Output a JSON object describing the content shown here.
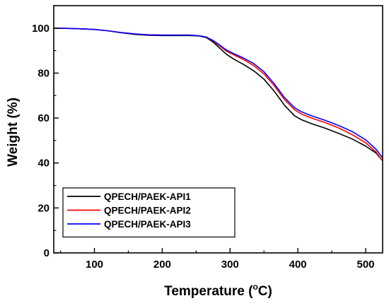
{
  "chart_data": {
    "type": "line",
    "xlabel": "Temperature (°C)",
    "xlabel_parts": {
      "prefix": "Temperature (",
      "super": "o",
      "suffix": "C)"
    },
    "ylabel": "Weight (%)",
    "xlim": [
      40,
      525
    ],
    "ylim": [
      0,
      110
    ],
    "x_ticks": [
      100,
      200,
      300,
      400,
      500
    ],
    "y_ticks": [
      0,
      20,
      40,
      60,
      80,
      100
    ],
    "x_minor_step": 50,
    "y_minor_step": 10,
    "grid": false,
    "legend_position": "bottom-left",
    "series": [
      {
        "name": "QPECH/PAEK-API1",
        "color": "#000000",
        "points": [
          [
            40,
            100
          ],
          [
            60,
            99.9
          ],
          [
            80,
            99.7
          ],
          [
            100,
            99.4
          ],
          [
            120,
            98.8
          ],
          [
            140,
            97.9
          ],
          [
            160,
            97.2
          ],
          [
            180,
            96.8
          ],
          [
            200,
            96.7
          ],
          [
            220,
            96.7
          ],
          [
            240,
            96.7
          ],
          [
            255,
            96.5
          ],
          [
            265,
            95.8
          ],
          [
            275,
            93.8
          ],
          [
            285,
            91
          ],
          [
            295,
            88.3
          ],
          [
            305,
            86.3
          ],
          [
            320,
            83.8
          ],
          [
            335,
            81
          ],
          [
            350,
            77.3
          ],
          [
            365,
            72
          ],
          [
            380,
            65.8
          ],
          [
            395,
            61
          ],
          [
            405,
            59.3
          ],
          [
            420,
            57.5
          ],
          [
            440,
            55.5
          ],
          [
            460,
            53.2
          ],
          [
            480,
            50.7
          ],
          [
            500,
            47.5
          ],
          [
            515,
            44.5
          ],
          [
            525,
            41
          ]
        ]
      },
      {
        "name": "QPECH/PAEK-API2",
        "color": "#ff0000",
        "points": [
          [
            40,
            100
          ],
          [
            60,
            99.9
          ],
          [
            80,
            99.7
          ],
          [
            100,
            99.4
          ],
          [
            120,
            98.8
          ],
          [
            140,
            98
          ],
          [
            160,
            97.4
          ],
          [
            180,
            97
          ],
          [
            200,
            96.9
          ],
          [
            220,
            96.9
          ],
          [
            240,
            96.9
          ],
          [
            255,
            96.6
          ],
          [
            265,
            96
          ],
          [
            275,
            94.3
          ],
          [
            285,
            92
          ],
          [
            295,
            89.7
          ],
          [
            305,
            88.2
          ],
          [
            320,
            86
          ],
          [
            335,
            83.3
          ],
          [
            350,
            79.6
          ],
          [
            365,
            74.4
          ],
          [
            380,
            68.3
          ],
          [
            395,
            63.7
          ],
          [
            405,
            61.8
          ],
          [
            420,
            60
          ],
          [
            440,
            58
          ],
          [
            460,
            55.6
          ],
          [
            480,
            52.6
          ],
          [
            500,
            49
          ],
          [
            515,
            45
          ],
          [
            525,
            41
          ]
        ]
      },
      {
        "name": "QPECH/PAEK-API3",
        "color": "#0000ff",
        "points": [
          [
            40,
            100
          ],
          [
            60,
            99.9
          ],
          [
            80,
            99.7
          ],
          [
            100,
            99.4
          ],
          [
            120,
            98.8
          ],
          [
            140,
            98
          ],
          [
            160,
            97.4
          ],
          [
            180,
            97
          ],
          [
            200,
            96.9
          ],
          [
            220,
            96.9
          ],
          [
            240,
            96.9
          ],
          [
            255,
            96.6
          ],
          [
            265,
            96
          ],
          [
            275,
            94.5
          ],
          [
            285,
            92.4
          ],
          [
            295,
            90.2
          ],
          [
            305,
            88.7
          ],
          [
            320,
            86.7
          ],
          [
            335,
            84.2
          ],
          [
            350,
            80.6
          ],
          [
            365,
            75.3
          ],
          [
            380,
            69.2
          ],
          [
            395,
            64.6
          ],
          [
            405,
            62.8
          ],
          [
            420,
            61
          ],
          [
            440,
            59
          ],
          [
            460,
            56.7
          ],
          [
            480,
            54
          ],
          [
            500,
            50.3
          ],
          [
            515,
            46.2
          ],
          [
            525,
            42.3
          ]
        ]
      }
    ]
  }
}
